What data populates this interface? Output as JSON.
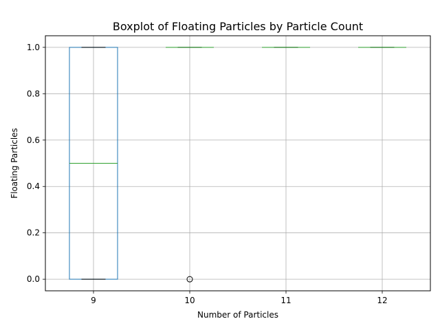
{
  "chart_data": {
    "type": "boxplot",
    "title": "Boxplot of Floating Particles by Particle Count",
    "xlabel": "Number of Particles",
    "ylabel": "Floating Particles",
    "categories": [
      "9",
      "10",
      "11",
      "12"
    ],
    "ylim": [
      -0.05,
      1.05
    ],
    "y_ticks": [
      "0.0",
      "0.2",
      "0.4",
      "0.6",
      "0.8",
      "1.0"
    ],
    "grid": true,
    "boxes": [
      {
        "category": "9",
        "whisker_low": 0.0,
        "q1": 0.0,
        "median": 0.5,
        "q3": 1.0,
        "whisker_high": 1.0,
        "outliers": []
      },
      {
        "category": "10",
        "whisker_low": 1.0,
        "q1": 1.0,
        "median": 1.0,
        "q3": 1.0,
        "whisker_high": 1.0,
        "outliers": [
          0.0
        ]
      },
      {
        "category": "11",
        "whisker_low": 1.0,
        "q1": 1.0,
        "median": 1.0,
        "q3": 1.0,
        "whisker_high": 1.0,
        "outliers": []
      },
      {
        "category": "12",
        "whisker_low": 1.0,
        "q1": 1.0,
        "median": 1.0,
        "q3": 1.0,
        "whisker_high": 1.0,
        "outliers": []
      }
    ],
    "colors": {
      "box": "#1f77b4",
      "median": "#2ca02c",
      "whisker": "#000000",
      "grid": "#b0b0b0"
    }
  }
}
